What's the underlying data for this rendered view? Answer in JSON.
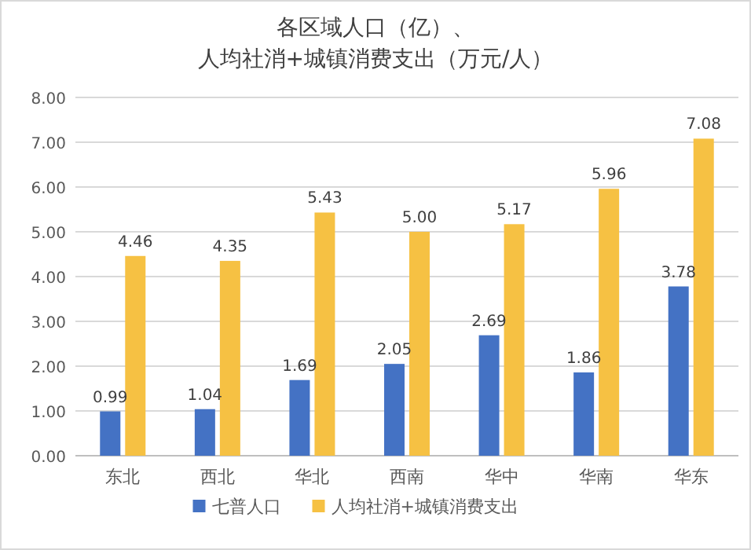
{
  "chart_data": {
    "type": "bar",
    "title": "各区域人口（亿）、人均社消+城镇消费支出（万元/人）",
    "categories": [
      "东北",
      "西北",
      "华北",
      "西南",
      "华中",
      "华南",
      "华东"
    ],
    "series": [
      {
        "name": "七普人口",
        "color": "#4472c4",
        "values": [
          0.99,
          1.04,
          1.69,
          2.05,
          2.69,
          1.86,
          3.78
        ],
        "value_labels": [
          "0.99",
          "1.04",
          "1.69",
          "2.05",
          "2.69",
          "1.86",
          "3.78"
        ]
      },
      {
        "name": "人均社消+城镇消费支出",
        "color": "#f6c143",
        "values": [
          4.46,
          4.35,
          5.43,
          5.0,
          5.17,
          5.96,
          7.08
        ],
        "value_labels": [
          "4.46",
          "4.35",
          "5.43",
          "5.00",
          "5.17",
          "5.96",
          "7.08"
        ]
      }
    ],
    "ylim": [
      0,
      8
    ],
    "yticks": [
      {
        "value": 0,
        "label": "0.00"
      },
      {
        "value": 1,
        "label": "1.00"
      },
      {
        "value": 2,
        "label": "2.00"
      },
      {
        "value": 3,
        "label": "3.00"
      },
      {
        "value": 4,
        "label": "4.00"
      },
      {
        "value": 5,
        "label": "5.00"
      },
      {
        "value": 6,
        "label": "6.00"
      },
      {
        "value": 7,
        "label": "7.00"
      },
      {
        "value": 8,
        "label": "8.00"
      }
    ],
    "grid": "y",
    "legend": "bottom"
  }
}
